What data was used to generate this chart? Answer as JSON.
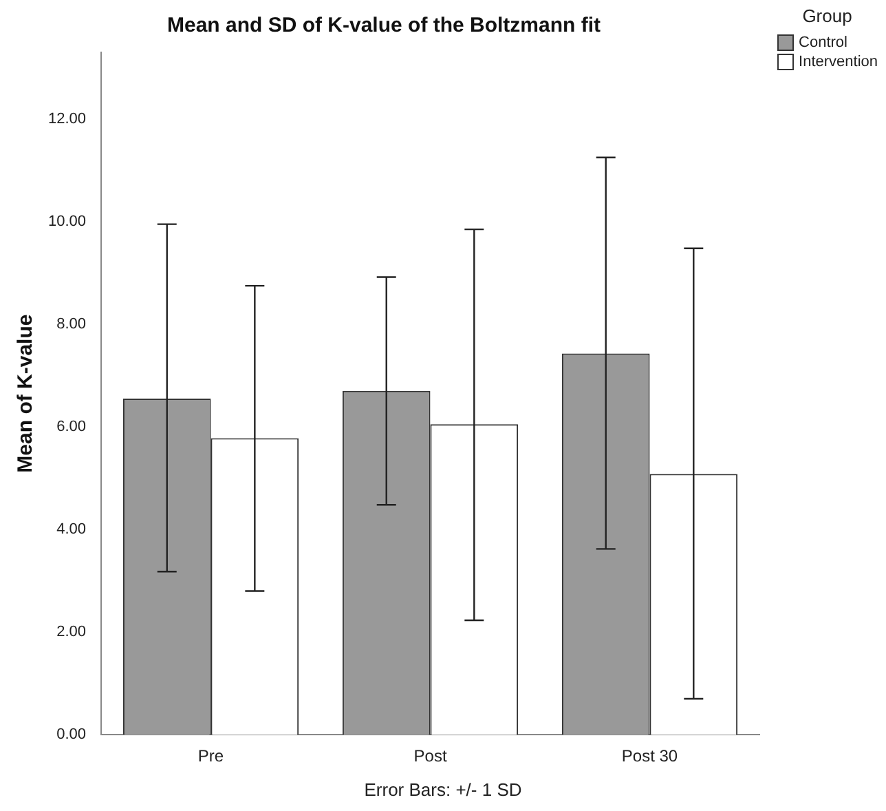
{
  "chart_data": {
    "type": "bar",
    "title": "Mean and SD of K-value of the Boltzmann fit",
    "ylabel": "Mean of K-value",
    "legend_title": "Group",
    "annotations": [
      "Error Bars: +/- 1 SD"
    ],
    "categories": [
      "Pre",
      "Post",
      "Post 30"
    ],
    "series": [
      {
        "name": "Control",
        "color": "#999999",
        "values": [
          6.55,
          6.7,
          7.43
        ],
        "errors": [
          [
            3.18,
            9.95
          ],
          [
            4.48,
            8.92
          ],
          [
            3.62,
            11.25
          ]
        ]
      },
      {
        "name": "Intervention",
        "color": "#ffffff",
        "values": [
          5.78,
          6.05,
          5.08
        ],
        "errors": [
          [
            2.8,
            8.75
          ],
          [
            2.23,
            9.85
          ],
          [
            0.7,
            9.48
          ]
        ]
      }
    ],
    "ylim": [
      0,
      13.3
    ],
    "yticks": [
      {
        "value": 0,
        "label": "0.00"
      },
      {
        "value": 2,
        "label": "2.00"
      },
      {
        "value": 4,
        "label": "4.00"
      },
      {
        "value": 6,
        "label": "6.00"
      },
      {
        "value": 8,
        "label": "8.00"
      },
      {
        "value": 10,
        "label": "10.00"
      },
      {
        "value": 12,
        "label": "12.00"
      }
    ],
    "grid": false,
    "legend": "top right"
  }
}
